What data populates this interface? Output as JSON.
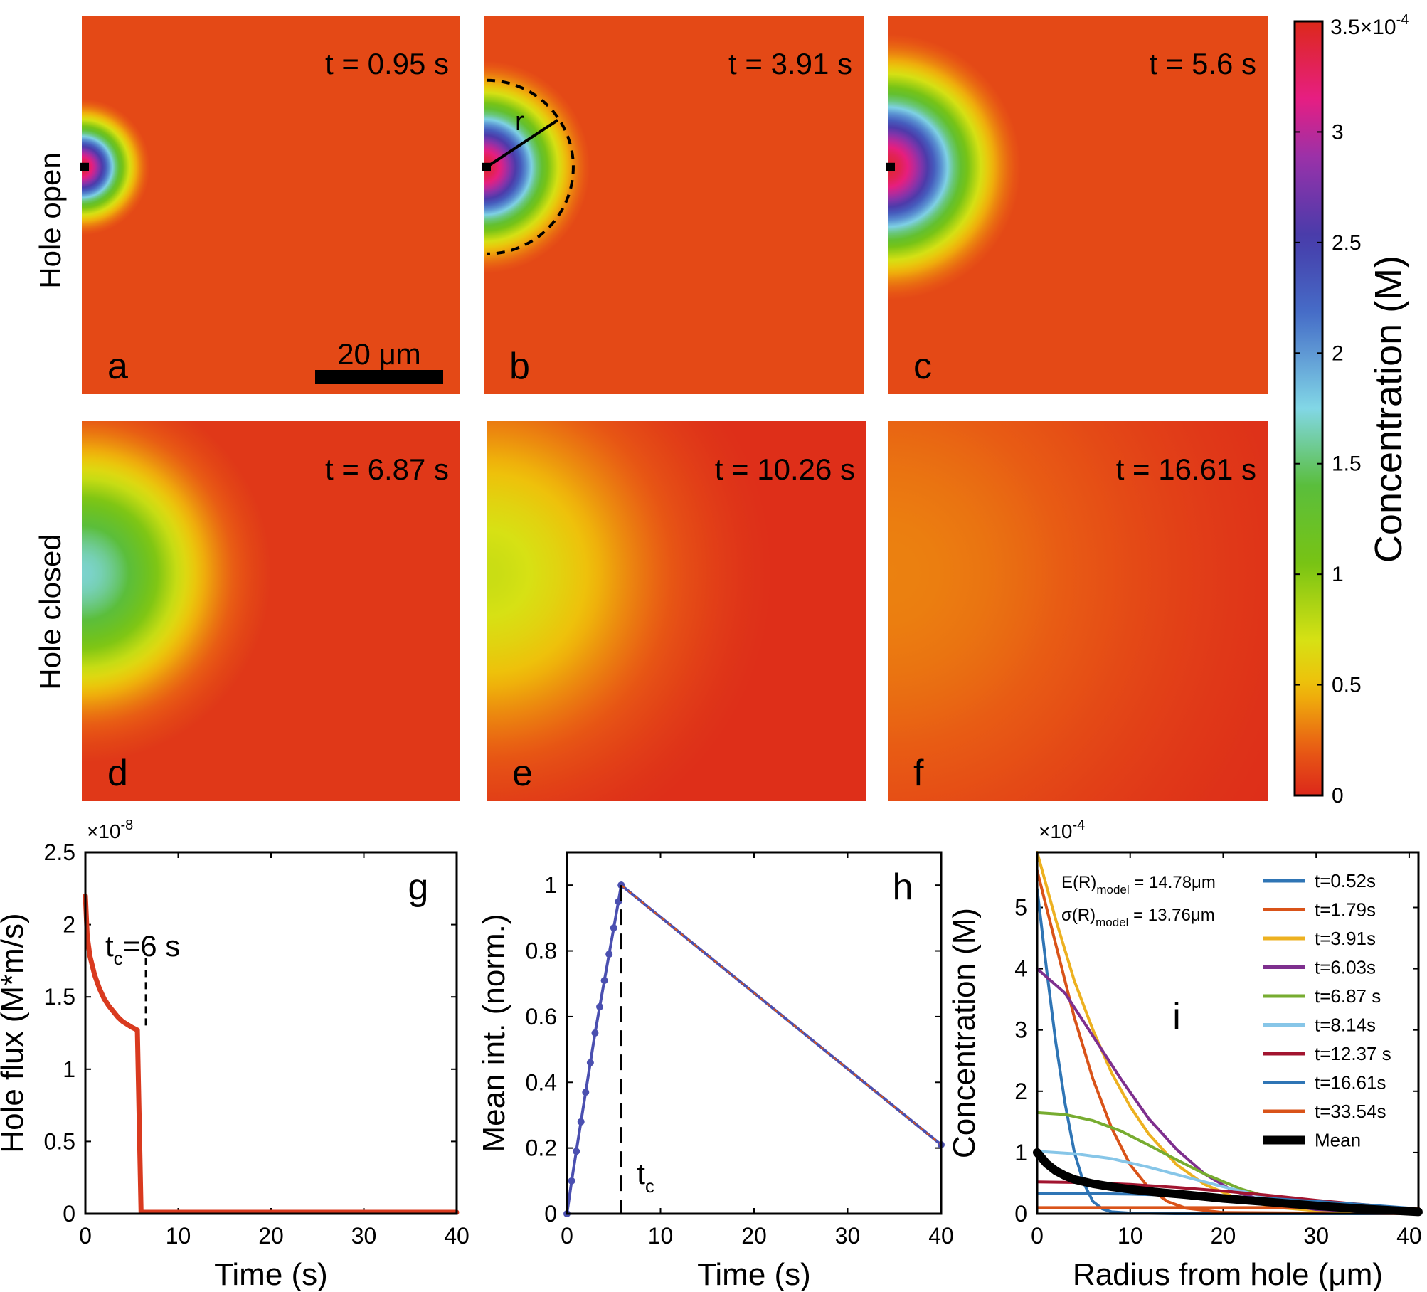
{
  "panels": [
    {
      "id": "a",
      "time_label": "t = 0.95 s",
      "radius": 0.18,
      "peak": 3.4,
      "row": "open",
      "scale_bar": "20 μm"
    },
    {
      "id": "b",
      "time_label": "t = 3.91 s",
      "radius": 0.28,
      "peak": 3.4,
      "row": "open",
      "r_label": "r"
    },
    {
      "id": "c",
      "time_label": "t = 5.6 s",
      "radius": 0.35,
      "peak": 3.4,
      "row": "open"
    },
    {
      "id": "d",
      "time_label": "t = 6.87 s",
      "radius": 0.5,
      "peak": 1.7,
      "row": "closed"
    },
    {
      "id": "e",
      "time_label": "t = 10.26 s",
      "radius": 0.75,
      "peak": 0.75,
      "row": "closed"
    },
    {
      "id": "f",
      "time_label": "t = 16.61 s",
      "radius": 1.3,
      "peak": 0.32,
      "row": "closed"
    }
  ],
  "row_labels": {
    "open": "Hole open",
    "closed": "Hole closed"
  },
  "colorbar": {
    "label": "Concentration (M)",
    "max_label": "3.5×10",
    "max_exp": "-4",
    "ticks": [
      "0",
      "0.5",
      "1",
      "1.5",
      "2",
      "2.5",
      "3"
    ],
    "tick_values": [
      0,
      0.5,
      1,
      1.5,
      2,
      2.5,
      3
    ],
    "vmax": 3.5
  },
  "chart_data": [
    {
      "id": "g",
      "type": "line",
      "panel_letter": "g",
      "xlabel": "Time (s)",
      "ylabel": "Hole flux (M*m/s)",
      "exponent_label": "×10",
      "exponent": "-8",
      "xlim": [
        0,
        40
      ],
      "ylim": [
        0,
        2.5
      ],
      "xticks": [
        "0",
        "10",
        "20",
        "30",
        "40"
      ],
      "yticks": [
        "0",
        "0.5",
        "1",
        "1.5",
        "2",
        "2.5"
      ],
      "annotation": {
        "base": "t",
        "sub": "c",
        "rest": "=6 s",
        "x": 5.6
      },
      "series": [
        {
          "name": "flux",
          "color": "#d93a1f",
          "x": [
            0,
            0.2,
            0.5,
            1,
            1.5,
            2,
            2.5,
            3,
            3.5,
            4,
            4.5,
            5,
            5.6,
            6,
            40
          ],
          "y": [
            2.2,
            1.92,
            1.78,
            1.65,
            1.56,
            1.49,
            1.44,
            1.4,
            1.36,
            1.33,
            1.31,
            1.29,
            1.27,
            0.01,
            0.01
          ]
        }
      ]
    },
    {
      "id": "h",
      "type": "line",
      "panel_letter": "h",
      "xlabel": "Time (s)",
      "ylabel": "Mean int. (norm.)",
      "xlim": [
        0,
        40
      ],
      "ylim": [
        0,
        1.1
      ],
      "xticks": [
        "0",
        "10",
        "20",
        "30",
        "40"
      ],
      "yticks": [
        "0",
        "0.2",
        "0.4",
        "0.6",
        "0.8",
        "1"
      ],
      "annotation": {
        "base": "t",
        "sub": "c",
        "x": 5.8
      },
      "series": [
        {
          "name": "rise",
          "color": "#4a4fb0",
          "x": [
            0,
            0.5,
            1,
            1.5,
            2,
            2.5,
            3,
            3.5,
            4,
            4.5,
            5,
            5.5,
            5.8
          ],
          "y": [
            0,
            0.1,
            0.19,
            0.28,
            0.37,
            0.46,
            0.55,
            0.63,
            0.71,
            0.79,
            0.87,
            0.95,
            1.0
          ]
        },
        {
          "name": "decay",
          "color": "#4a4fb0",
          "x": [
            5.8,
            40
          ],
          "y": [
            1.0,
            0.21
          ]
        }
      ]
    },
    {
      "id": "i",
      "type": "line",
      "panel_letter": "i",
      "xlabel": "Radius from hole (μm)",
      "ylabel": "Concentration (M)",
      "exponent_label": "×10",
      "exponent": "-4",
      "xlim": [
        0,
        41
      ],
      "ylim": [
        0,
        5.9
      ],
      "xticks": [
        "0",
        "10",
        "20",
        "30",
        "40"
      ],
      "yticks": [
        "0",
        "1",
        "2",
        "3",
        "4",
        "5"
      ],
      "stats": [
        {
          "base": "E(R)",
          "sub": "model",
          "rest": " = 14.78μm"
        },
        {
          "base": "σ(R)",
          "sub": "model",
          "rest": " = 13.76μm"
        }
      ],
      "series": [
        {
          "name": "t=0.52s",
          "color": "#2f75b5",
          "x": [
            0,
            1,
            2,
            3,
            4,
            5,
            6,
            7,
            8,
            10,
            15,
            41
          ],
          "y": [
            5.3,
            4.0,
            2.8,
            1.8,
            1.0,
            0.5,
            0.2,
            0.08,
            0.03,
            0.01,
            0,
            0
          ]
        },
        {
          "name": "t=1.79s",
          "color": "#d95319",
          "x": [
            0,
            2,
            4,
            6,
            8,
            10,
            12,
            14,
            16,
            20,
            41
          ],
          "y": [
            5.6,
            4.4,
            3.2,
            2.2,
            1.4,
            0.8,
            0.42,
            0.2,
            0.09,
            0.02,
            0
          ]
        },
        {
          "name": "t=3.91s",
          "color": "#edb120",
          "x": [
            0,
            2,
            4,
            6,
            8,
            10,
            12,
            15,
            18,
            22,
            26,
            30,
            41
          ],
          "y": [
            5.9,
            4.8,
            3.8,
            3.0,
            2.3,
            1.75,
            1.3,
            0.8,
            0.48,
            0.22,
            0.1,
            0.05,
            0
          ]
        },
        {
          "name": "t=6.03s",
          "color": "#7e2f8e",
          "x": [
            0,
            3,
            6,
            9,
            12,
            15,
            18,
            21,
            25,
            30,
            41
          ],
          "y": [
            4.0,
            3.6,
            2.9,
            2.2,
            1.55,
            1.05,
            0.65,
            0.38,
            0.18,
            0.07,
            0
          ]
        },
        {
          "name": "t=6.87 s",
          "color": "#77ac30",
          "x": [
            0,
            3,
            6,
            9,
            12,
            15,
            18,
            22,
            26,
            30,
            41
          ],
          "y": [
            1.65,
            1.62,
            1.52,
            1.35,
            1.12,
            0.88,
            0.65,
            0.4,
            0.22,
            0.11,
            0.02
          ]
        },
        {
          "name": "t=8.14s",
          "color": "#87c6e8",
          "x": [
            0,
            4,
            8,
            12,
            16,
            20,
            25,
            30,
            35,
            41
          ],
          "y": [
            1.02,
            0.98,
            0.9,
            0.76,
            0.6,
            0.44,
            0.26,
            0.14,
            0.07,
            0.03
          ]
        },
        {
          "name": "t=12.37 s",
          "color": "#a2142f",
          "x": [
            0,
            5,
            10,
            15,
            20,
            25,
            30,
            35,
            41
          ],
          "y": [
            0.52,
            0.51,
            0.48,
            0.43,
            0.37,
            0.3,
            0.22,
            0.15,
            0.07
          ]
        },
        {
          "name": "t=16.61s",
          "color": "#2f75b5",
          "x": [
            0,
            5,
            10,
            15,
            20,
            25,
            30,
            35,
            41
          ],
          "y": [
            0.33,
            0.33,
            0.32,
            0.3,
            0.28,
            0.25,
            0.2,
            0.15,
            0.08
          ]
        },
        {
          "name": "t=33.54s",
          "color": "#d95319",
          "x": [
            0,
            10,
            20,
            30,
            41
          ],
          "y": [
            0.1,
            0.1,
            0.1,
            0.1,
            0.09
          ]
        },
        {
          "name": "Mean",
          "color": "#000000",
          "x": [
            0,
            1,
            2,
            3,
            4,
            6,
            8,
            10,
            13,
            16,
            20,
            25,
            30,
            35,
            41
          ],
          "y": [
            1.0,
            0.82,
            0.7,
            0.62,
            0.56,
            0.49,
            0.44,
            0.4,
            0.35,
            0.31,
            0.25,
            0.19,
            0.13,
            0.08,
            0.03
          ]
        }
      ]
    }
  ]
}
